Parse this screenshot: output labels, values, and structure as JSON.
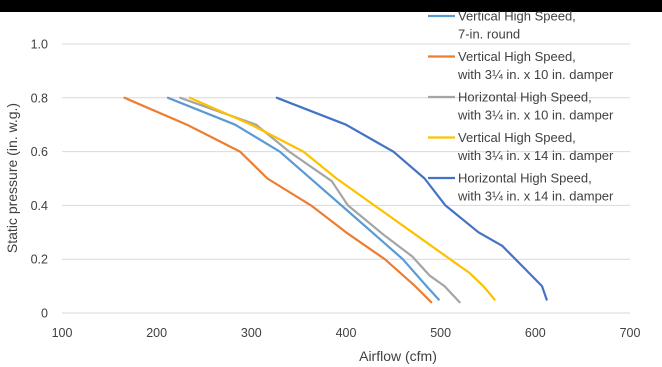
{
  "chart_data": {
    "type": "line",
    "xlabel": "Airflow (cfm)",
    "ylabel": "Static pressure (in. w.g.)",
    "xlim": [
      100,
      700
    ],
    "ylim": [
      0,
      1.0
    ],
    "x_ticks": [
      "100",
      "200",
      "300",
      "400",
      "500",
      "600",
      "700"
    ],
    "y_ticks": [
      "0",
      "0.2",
      "0.4",
      "0.6",
      "0.8",
      "1.0"
    ],
    "y_tick_values": [
      0,
      0.2,
      0.4,
      0.6,
      0.8,
      1.0
    ],
    "x_tick_values": [
      100,
      200,
      300,
      400,
      500,
      600,
      700
    ],
    "grid": "horizontal",
    "legend_position": "top-right",
    "series": [
      {
        "name_lines": [
          "Vertical High Speed,",
          "7-in. round"
        ],
        "color": "#5b9bd5",
        "points": [
          [
            212,
            0.8
          ],
          [
            283,
            0.7
          ],
          [
            330,
            0.6
          ],
          [
            405,
            0.37
          ],
          [
            460,
            0.2
          ],
          [
            485,
            0.1
          ],
          [
            498,
            0.05
          ]
        ]
      },
      {
        "name_lines": [
          "Vertical High Speed,",
          "with 3¼ in. x 10 in. damper"
        ],
        "color": "#ed7d31",
        "points": [
          [
            166,
            0.8
          ],
          [
            232,
            0.7
          ],
          [
            288,
            0.6
          ],
          [
            317,
            0.5
          ],
          [
            363,
            0.4
          ],
          [
            400,
            0.3
          ],
          [
            441,
            0.2
          ],
          [
            473,
            0.1
          ],
          [
            490,
            0.04
          ]
        ]
      },
      {
        "name_lines": [
          "Horizontal High Speed,",
          "with 3¼ in. x 10 in. damper"
        ],
        "color": "#a5a5a5",
        "points": [
          [
            225,
            0.8
          ],
          [
            305,
            0.7
          ],
          [
            340,
            0.6
          ],
          [
            385,
            0.49
          ],
          [
            402,
            0.4
          ],
          [
            440,
            0.29
          ],
          [
            470,
            0.21
          ],
          [
            488,
            0.14
          ],
          [
            504,
            0.1
          ],
          [
            520,
            0.04
          ]
        ]
      },
      {
        "name_lines": [
          "Vertical High Speed,",
          "with 3¼ in. x 14 in. damper"
        ],
        "color": "#ffc000",
        "points": [
          [
            235,
            0.8
          ],
          [
            300,
            0.7
          ],
          [
            355,
            0.6
          ],
          [
            390,
            0.5
          ],
          [
            470,
            0.3
          ],
          [
            510,
            0.2
          ],
          [
            530,
            0.15
          ],
          [
            545,
            0.1
          ],
          [
            557,
            0.05
          ]
        ]
      },
      {
        "name_lines": [
          "Horizontal High Speed,",
          "with 3¼ in. x 14 in. damper"
        ],
        "color": "#4472c4",
        "points": [
          [
            327,
            0.8
          ],
          [
            400,
            0.7
          ],
          [
            450,
            0.6
          ],
          [
            483,
            0.5
          ],
          [
            505,
            0.4
          ],
          [
            540,
            0.3
          ],
          [
            565,
            0.25
          ],
          [
            593,
            0.15
          ],
          [
            607,
            0.1
          ],
          [
            612,
            0.05
          ]
        ]
      }
    ]
  }
}
